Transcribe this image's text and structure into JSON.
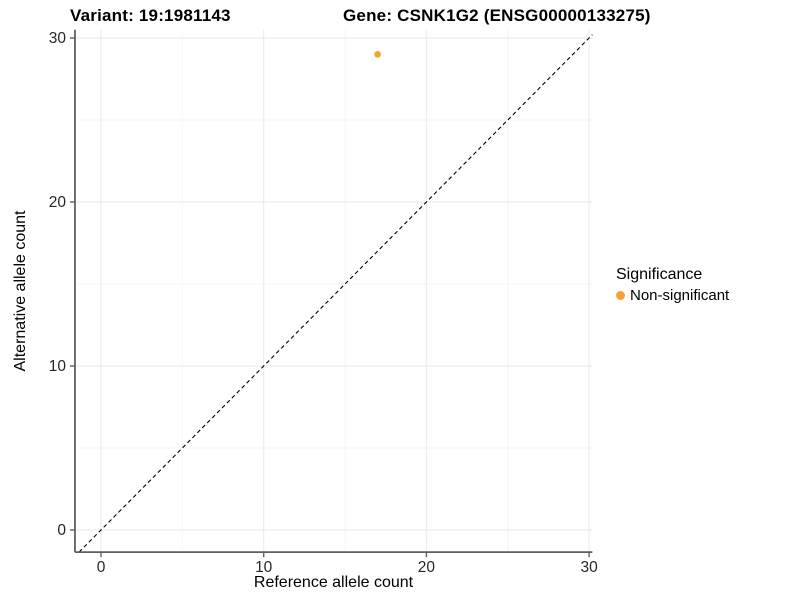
{
  "titles": {
    "variant": "Variant: 19:1981143",
    "gene": "Gene: CSNK1G2 (ENSG00000133275)"
  },
  "chart_data": {
    "type": "scatter",
    "xlabel": "Reference allele count",
    "ylabel": "Alternative allele count",
    "xlim": [
      -1.6,
      30.2
    ],
    "ylim": [
      -1.35,
      30.5
    ],
    "xticks": [
      0,
      10,
      20,
      30
    ],
    "yticks": [
      0,
      10,
      20,
      30
    ],
    "minor_xticks": [
      5,
      15,
      25
    ],
    "minor_yticks": [
      5,
      15,
      25
    ],
    "grid": "on",
    "series": [
      {
        "name": "Non-significant",
        "color": "#F9A232",
        "points": [
          {
            "x": 17,
            "y": 29
          }
        ]
      }
    ],
    "reference_line": {
      "type": "identity",
      "slope": 1,
      "intercept": 0,
      "style": "dashed",
      "color": "#000000"
    },
    "legend": {
      "title": "Significance",
      "position": "right",
      "items": [
        {
          "label": "Non-significant",
          "color": "#F9A232"
        }
      ]
    }
  },
  "colors": {
    "grid_major": "#ececec",
    "grid_minor": "#f6f6f6",
    "axis_line": "#5f5f5f",
    "tick_text": "#262626"
  }
}
